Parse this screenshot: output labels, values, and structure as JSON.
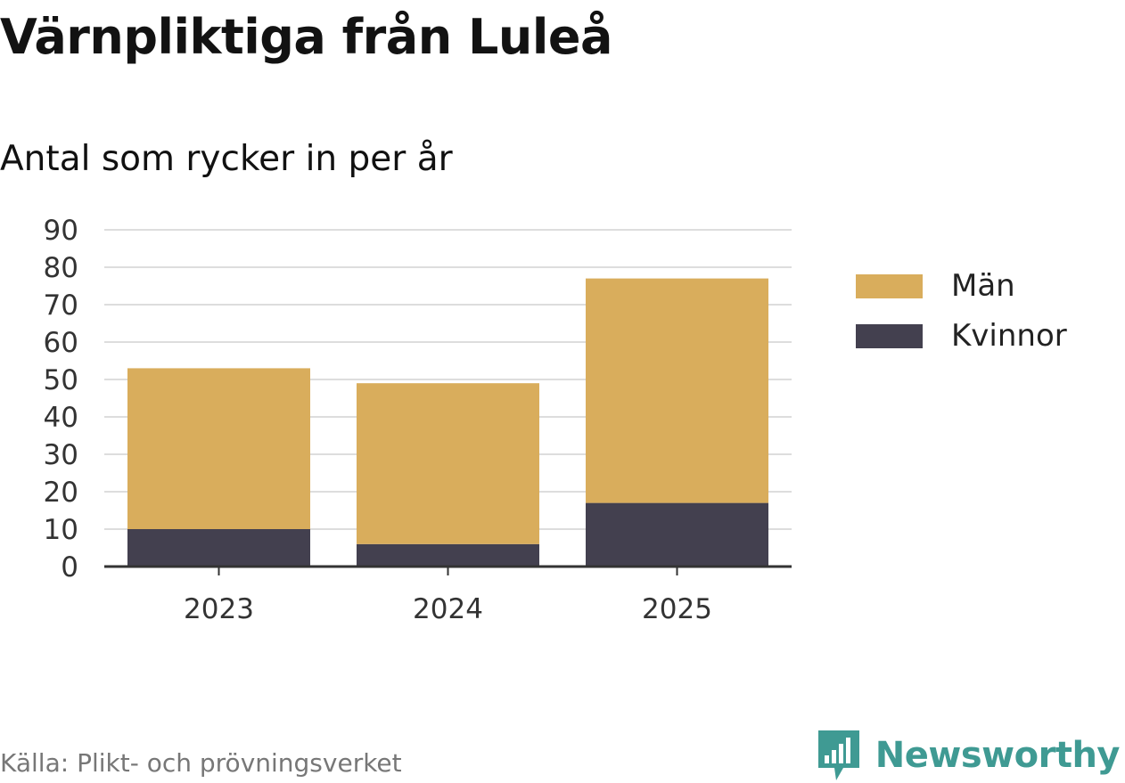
{
  "header": {
    "title": "Värnpliktiga från Luleå",
    "subtitle": "Antal som rycker in per år"
  },
  "chart_data": {
    "type": "bar",
    "stacked": true,
    "categories": [
      "2023",
      "2024",
      "2025"
    ],
    "series": [
      {
        "name": "Kvinnor",
        "values": [
          10,
          6,
          17
        ],
        "color": "#43404f"
      },
      {
        "name": "Män",
        "values": [
          43,
          43,
          60
        ],
        "color": "#d9ad5c"
      }
    ],
    "ylim": [
      0,
      90
    ],
    "yticks": [
      0,
      10,
      20,
      30,
      40,
      50,
      60,
      70,
      80,
      90
    ],
    "grid": true,
    "legend": "right"
  },
  "legend": {
    "items": [
      {
        "label": "Män",
        "color": "#d9ad5c"
      },
      {
        "label": "Kvinnor",
        "color": "#43404f"
      }
    ]
  },
  "footer": {
    "source": "Källa: Plikt- och prövningsverket",
    "brand": "Newsworthy",
    "brand_icon": "bar-chart-speech-bubble-icon",
    "brand_color": "#3f9a93"
  }
}
